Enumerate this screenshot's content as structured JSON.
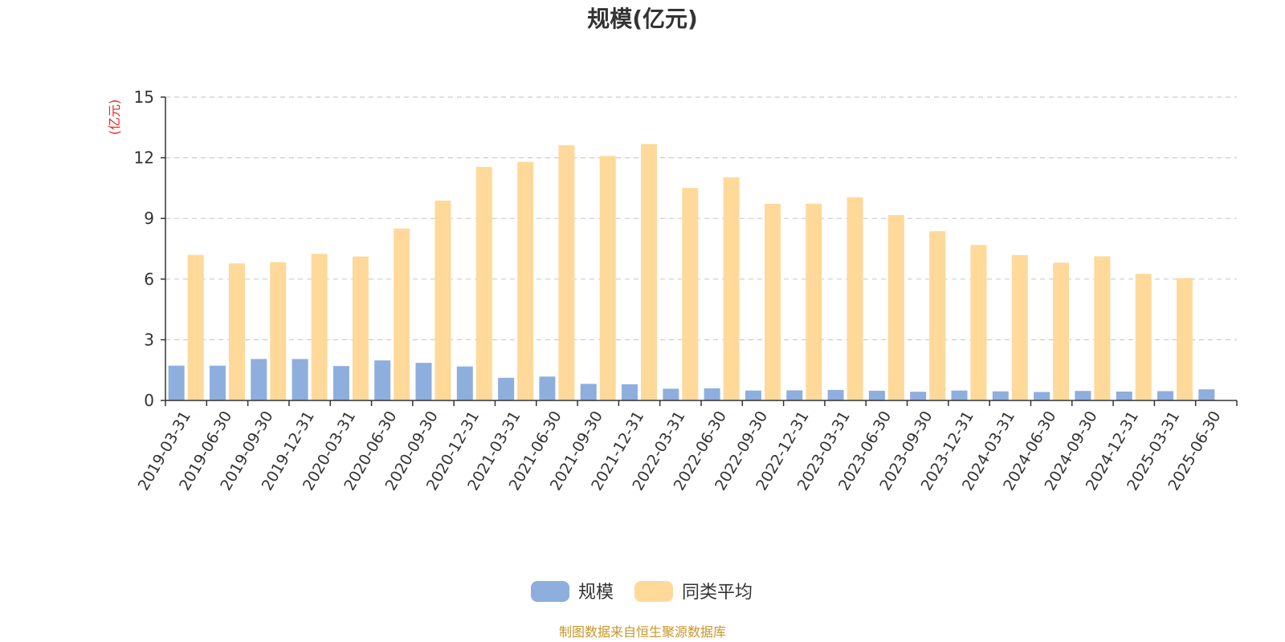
{
  "chart_data": {
    "type": "bar",
    "title": "规模(亿元)",
    "ylabel": "(亿元)",
    "ylim": [
      0,
      15
    ],
    "yticks": [
      0,
      3,
      6,
      9,
      12,
      15
    ],
    "grid": true,
    "legend_position": "bottom-center",
    "categories": [
      "2019-03-31",
      "2019-06-30",
      "2019-09-30",
      "2019-12-31",
      "2020-03-31",
      "2020-06-30",
      "2020-09-30",
      "2020-12-31",
      "2021-03-31",
      "2021-06-30",
      "2021-09-30",
      "2021-12-31",
      "2022-03-31",
      "2022-06-30",
      "2022-09-30",
      "2022-12-31",
      "2023-03-31",
      "2023-06-30",
      "2023-09-30",
      "2023-12-31",
      "2024-03-31",
      "2024-06-30",
      "2024-09-30",
      "2024-12-31",
      "2025-03-31",
      "2025-06-30"
    ],
    "series": [
      {
        "name": "规模",
        "color": "#8eaedd",
        "values": [
          1.72,
          1.72,
          2.05,
          2.05,
          1.7,
          1.98,
          1.86,
          1.68,
          1.12,
          1.18,
          0.82,
          0.8,
          0.58,
          0.6,
          0.49,
          0.5,
          0.52,
          0.48,
          0.43,
          0.49,
          0.45,
          0.42,
          0.47,
          0.44,
          0.46,
          0.55
        ]
      },
      {
        "name": "同类平均",
        "color": "#ffd99a",
        "values": [
          7.2,
          6.78,
          6.84,
          7.25,
          7.12,
          8.5,
          9.88,
          11.55,
          11.8,
          12.62,
          12.09,
          12.68,
          10.51,
          11.03,
          9.72,
          9.73,
          10.05,
          9.17,
          8.37,
          7.69,
          7.19,
          6.81,
          7.13,
          6.26,
          6.05,
          null
        ]
      }
    ]
  },
  "footer": {
    "source": "制图数据来自恒生聚源数据库"
  }
}
